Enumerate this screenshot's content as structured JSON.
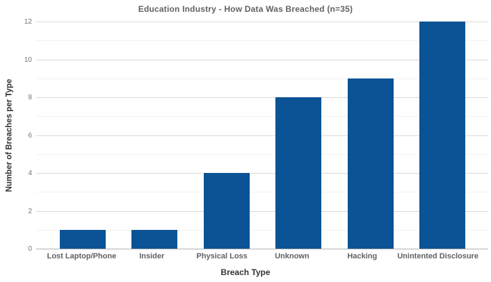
{
  "chart_data": {
    "type": "bar",
    "title": "Education Industry - How Data Was Breached (n=35)",
    "categories": [
      "Lost Laptop/Phone",
      "Insider",
      "Physical Loss",
      "Unknown",
      "Hacking",
      "Unintented Disclosure"
    ],
    "values": [
      1,
      1,
      4,
      8,
      9,
      12
    ],
    "xlabel": "Breach Type",
    "ylabel": "Number of Breaches per Type",
    "ylim": [
      0,
      12
    ],
    "y_major_step": 2,
    "y_minor_step": 1,
    "grid": true,
    "legend_position": "none",
    "colors": {
      "bar": "#0b5394",
      "background": "#ffffff",
      "title_text": "#616161",
      "axis_title_text": "#333333",
      "y_tick_text": "#757575",
      "x_tick_text": "#616161",
      "grid_major": "#d9d9d9",
      "grid_minor": "#f2f2f2",
      "baseline": "#b0b0b0"
    }
  }
}
